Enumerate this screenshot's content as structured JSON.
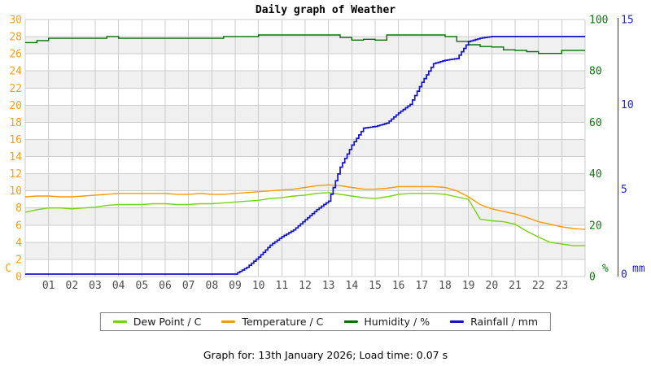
{
  "title": "Daily graph of Weather",
  "caption": "Graph for: 13th January 2026; Load time: 0.07 s",
  "chart_data": {
    "type": "line",
    "title": "Daily graph of Weather",
    "x_hours": [
      0,
      0.5,
      1,
      1.5,
      2,
      2.5,
      3,
      3.5,
      4,
      4.5,
      5,
      5.5,
      6,
      6.5,
      7,
      7.5,
      8,
      8.5,
      9,
      9.5,
      10,
      10.5,
      11,
      11.5,
      12,
      12.5,
      13,
      13.5,
      14,
      14.5,
      15,
      15.5,
      16,
      16.5,
      17,
      17.5,
      18,
      18.5,
      19,
      19.5,
      20,
      20.5,
      21,
      21.5,
      22,
      22.5,
      23,
      23.5,
      24
    ],
    "x_axis": {
      "range": [
        0,
        24
      ],
      "tick_hours": [
        1,
        2,
        3,
        4,
        5,
        6,
        7,
        8,
        9,
        10,
        11,
        12,
        13,
        14,
        15,
        16,
        17,
        18,
        19,
        20,
        21,
        22,
        23
      ],
      "tick_labels": [
        "01",
        "02",
        "03",
        "04",
        "05",
        "06",
        "07",
        "08",
        "09",
        "10",
        "11",
        "12",
        "13",
        "14",
        "15",
        "16",
        "17",
        "18",
        "19",
        "20",
        "21",
        "22",
        "23"
      ],
      "label_color": "#4d4d4d"
    },
    "axes": {
      "temp_c": {
        "unit": "C",
        "side": "left",
        "range": [
          0,
          30
        ],
        "ticks": [
          0,
          2,
          4,
          6,
          8,
          10,
          12,
          14,
          16,
          18,
          20,
          22,
          24,
          26,
          28,
          30
        ],
        "color": "#ff9e14"
      },
      "humidity_pct": {
        "unit": "%",
        "side": "right",
        "range": [
          0,
          100
        ],
        "ticks": [
          0,
          20,
          40,
          60,
          80,
          100
        ],
        "color": "#0a7a0a"
      },
      "rain_mm": {
        "unit": "mm",
        "side": "far-right",
        "range": [
          0,
          15
        ],
        "ticks": [
          0,
          5,
          10,
          15
        ],
        "color": "#2323cc"
      }
    },
    "series": [
      {
        "name": "Dew Point / C",
        "axis": "temp_c",
        "style": "line",
        "color": "#77d40c",
        "values": [
          7.5,
          7.8,
          8.0,
          8.0,
          7.9,
          8.0,
          8.1,
          8.3,
          8.4,
          8.4,
          8.4,
          8.5,
          8.5,
          8.4,
          8.4,
          8.5,
          8.5,
          8.6,
          8.7,
          8.8,
          8.9,
          9.1,
          9.2,
          9.4,
          9.5,
          9.7,
          9.8,
          9.6,
          9.4,
          9.2,
          9.1,
          9.3,
          9.6,
          9.7,
          9.7,
          9.7,
          9.6,
          9.3,
          9.0,
          6.7,
          6.5,
          6.4,
          6.1,
          5.3,
          4.6,
          4.0,
          3.8,
          3.6,
          3.6
        ]
      },
      {
        "name": "Temperature / C",
        "axis": "temp_c",
        "style": "line",
        "color": "#ff9900",
        "values": [
          9.3,
          9.4,
          9.4,
          9.3,
          9.3,
          9.4,
          9.5,
          9.6,
          9.7,
          9.7,
          9.7,
          9.7,
          9.7,
          9.6,
          9.6,
          9.7,
          9.6,
          9.6,
          9.7,
          9.8,
          9.9,
          10.0,
          10.1,
          10.2,
          10.4,
          10.6,
          10.7,
          10.6,
          10.4,
          10.2,
          10.2,
          10.3,
          10.5,
          10.5,
          10.5,
          10.5,
          10.4,
          10.0,
          9.3,
          8.4,
          7.9,
          7.6,
          7.3,
          6.9,
          6.4,
          6.1,
          5.8,
          5.6,
          5.5
        ]
      },
      {
        "name": "Humidity / %",
        "axis": "humidity_pct",
        "style": "step",
        "color": "#076e07",
        "values": [
          91.0,
          91.8,
          92.7,
          92.7,
          92.7,
          92.7,
          92.7,
          93.4,
          92.7,
          92.7,
          92.7,
          92.7,
          92.7,
          92.7,
          92.7,
          92.7,
          92.7,
          93.4,
          93.4,
          93.4,
          94.0,
          94.0,
          94.0,
          94.0,
          94.0,
          94.0,
          94.0,
          93.0,
          92.0,
          92.3,
          92.0,
          94.0,
          94.0,
          94.0,
          94.0,
          94.0,
          93.4,
          91.5,
          90.2,
          89.5,
          89.3,
          88.2,
          88.0,
          87.5,
          86.8,
          86.8,
          88.0,
          88.0,
          88.0
        ]
      },
      {
        "name": "Rainfall / mm",
        "axis": "rain_mm",
        "style": "stair",
        "color": "#1212cc",
        "values": [
          0,
          0,
          0,
          0,
          0,
          0,
          0,
          0,
          0,
          0,
          0,
          0,
          0,
          0,
          0,
          0,
          0,
          0,
          0,
          0.4,
          1.0,
          1.7,
          2.2,
          2.6,
          3.2,
          3.8,
          4.3,
          6.3,
          7.6,
          8.6,
          8.7,
          8.9,
          9.5,
          10.0,
          11.3,
          12.4,
          12.6,
          12.7,
          13.7,
          13.9,
          14.0,
          14.0,
          14.0,
          14.0,
          14.0,
          14.0,
          14.0,
          14.0,
          14.0
        ]
      }
    ],
    "grid": {
      "line_color": "#cccccc",
      "band_color": "#f0f0f0",
      "band_step": 2
    },
    "legend_position": "bottom"
  }
}
